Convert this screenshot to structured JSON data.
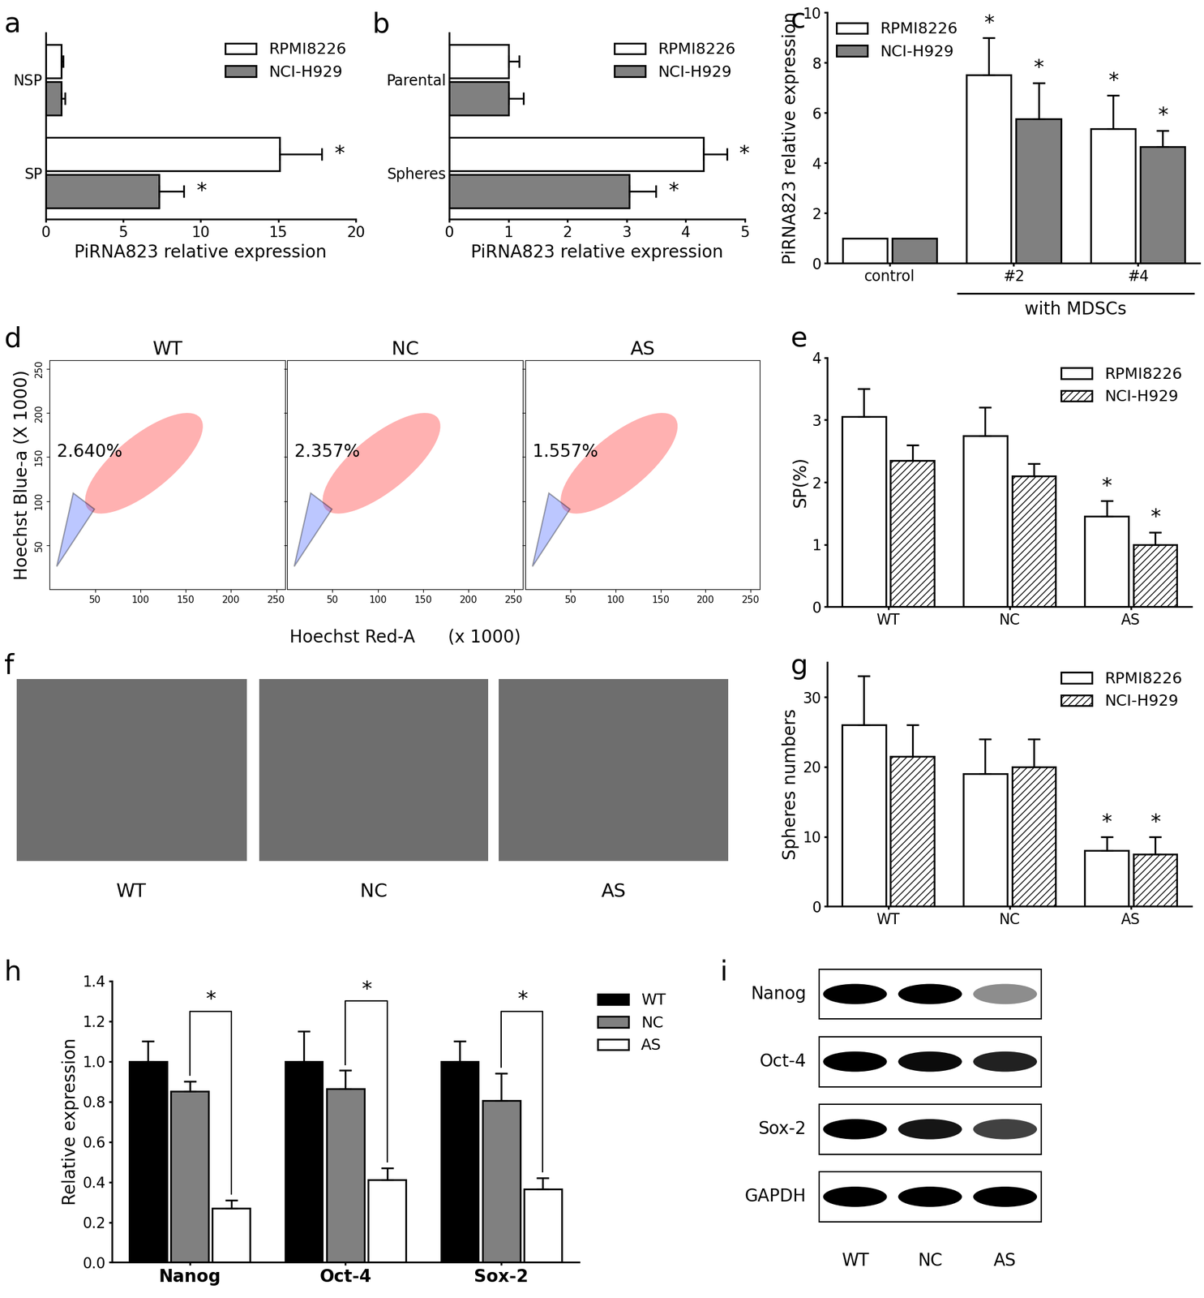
{
  "chart_data": [
    {
      "type": "bar",
      "orientation": "horizontal",
      "annotations": [
        "a"
      ],
      "categories": [
        "NSP",
        "SP"
      ],
      "xlabel": "PiRNA823 relative expression",
      "xlim": [
        0,
        20
      ],
      "xticks": [
        0,
        5,
        10,
        15,
        20
      ],
      "legend": "upper right",
      "series": [
        {
          "name": "RPMI8226",
          "color": "#ffffff",
          "values": [
            1,
            15.1
          ],
          "errors": [
            0.15,
            2.7
          ],
          "significance": [
            null,
            "*"
          ]
        },
        {
          "name": "NCI-H929",
          "color": "#808080",
          "values": [
            1,
            7.3
          ],
          "errors": [
            0.25,
            1.6
          ],
          "significance": [
            null,
            "*"
          ]
        }
      ]
    },
    {
      "type": "bar",
      "orientation": "horizontal",
      "annotations": [
        "b"
      ],
      "categories": [
        "Parental",
        "Spheres"
      ],
      "xlabel": "PiRNA823 relative expression",
      "xlim": [
        0,
        5
      ],
      "xticks": [
        0,
        1,
        2,
        3,
        4,
        5
      ],
      "legend": "upper right",
      "series": [
        {
          "name": "RPMI8226",
          "color": "#ffffff",
          "values": [
            1,
            4.3
          ],
          "errors": [
            0.18,
            0.4
          ],
          "significance": [
            null,
            "*"
          ]
        },
        {
          "name": "NCI-H929",
          "color": "#808080",
          "values": [
            1,
            3.05
          ],
          "errors": [
            0.25,
            0.45
          ],
          "significance": [
            null,
            "*"
          ]
        }
      ]
    },
    {
      "type": "bar",
      "annotations": [
        "c"
      ],
      "categories": [
        "control",
        "#2",
        "#4"
      ],
      "ylabel": "PiRNA823 relative expression",
      "group_label": {
        "text": "with MDSCs",
        "categories": [
          "#2",
          "#4"
        ]
      },
      "ylim": [
        0,
        10
      ],
      "yticks": [
        0,
        2,
        4,
        6,
        8,
        10
      ],
      "legend": "upper left",
      "series": [
        {
          "name": "RPMI8226",
          "color": "#ffffff",
          "values": [
            1,
            7.5,
            5.35
          ],
          "errors": [
            null,
            1.5,
            1.35
          ],
          "significance": [
            null,
            "*",
            "*"
          ]
        },
        {
          "name": "NCI-H929",
          "color": "#808080",
          "values": [
            1,
            5.75,
            4.65
          ],
          "errors": [
            null,
            1.45,
            0.65
          ],
          "significance": [
            null,
            "*",
            "*"
          ]
        }
      ]
    },
    {
      "type": "scatter",
      "annotations": [
        "d"
      ],
      "xlabel": "Hoechst Red-A      (x 1000)",
      "ylabel": "Hoechst Blue-a (X 1000)",
      "xlim": [
        0,
        260
      ],
      "ylim": [
        0,
        260
      ],
      "xticks": [
        50,
        100,
        150,
        200,
        250
      ],
      "yticks": [
        50,
        100,
        150,
        200,
        250
      ],
      "panels": [
        {
          "title": "WT",
          "gate_value": 2.64,
          "gate_label": "2.640%"
        },
        {
          "title": "NC",
          "gate_value": 2.357,
          "gate_label": "2.357%"
        },
        {
          "title": "AS",
          "gate_value": 1.557,
          "gate_label": "1.557%"
        }
      ]
    },
    {
      "type": "bar",
      "annotations": [
        "e"
      ],
      "categories": [
        "WT",
        "NC",
        "AS"
      ],
      "ylabel": "SP(%)",
      "ylim": [
        0,
        4
      ],
      "yticks": [
        0,
        1,
        2,
        3,
        4
      ],
      "legend": "upper right",
      "series": [
        {
          "name": "RPMI8226",
          "color": "#ffffff",
          "values": [
            3.05,
            2.75,
            1.45
          ],
          "errors": [
            0.45,
            0.45,
            0.25
          ],
          "significance": [
            null,
            null,
            "*"
          ]
        },
        {
          "name": "NCI-H929",
          "color": "#ffffff",
          "line_style": "hatched",
          "values": [
            2.35,
            2.1,
            1.0
          ],
          "errors": [
            0.25,
            0.2,
            0.2
          ],
          "significance": [
            null,
            null,
            "*"
          ]
        }
      ]
    },
    {
      "type": "image",
      "annotations": [
        "f"
      ],
      "panels": [
        "WT",
        "NC",
        "AS"
      ]
    },
    {
      "type": "bar",
      "annotations": [
        "g"
      ],
      "categories": [
        "WT",
        "NC",
        "AS"
      ],
      "ylabel": "Spheres numbers",
      "ylim": [
        0,
        35
      ],
      "yticks": [
        0,
        10,
        20,
        30
      ],
      "legend": "upper right",
      "series": [
        {
          "name": "RPMI8226",
          "color": "#ffffff",
          "values": [
            26,
            19,
            8
          ],
          "errors": [
            7,
            5,
            2
          ],
          "significance": [
            null,
            null,
            "*"
          ]
        },
        {
          "name": "NCI-H929",
          "color": "#ffffff",
          "line_style": "hatched",
          "values": [
            21.5,
            20,
            7.5
          ],
          "errors": [
            4.5,
            4,
            2.5
          ],
          "significance": [
            null,
            null,
            "*"
          ]
        }
      ]
    },
    {
      "type": "bar",
      "annotations": [
        "h"
      ],
      "categories": [
        "Nanog",
        "Oct-4",
        "Sox-2"
      ],
      "ylabel": "Relative expression",
      "ylim": [
        0,
        1.4
      ],
      "yticks": [
        0.0,
        0.2,
        0.4,
        0.6,
        0.8,
        1.0,
        1.2,
        1.4
      ],
      "legend": "outside right",
      "comparison": {
        "between": [
          "NC",
          "AS"
        ],
        "labels": [
          "*",
          "*",
          "*"
        ]
      },
      "series": [
        {
          "name": "WT",
          "color": "#000000",
          "values": [
            1.0,
            1.0,
            1.0
          ],
          "errors": [
            0.1,
            0.15,
            0.1
          ]
        },
        {
          "name": "NC",
          "color": "#808080",
          "values": [
            0.85,
            0.865,
            0.805
          ],
          "errors": [
            0.05,
            0.09,
            0.135
          ]
        },
        {
          "name": "AS",
          "color": "#ffffff",
          "values": [
            0.27,
            0.41,
            0.365
          ],
          "errors": [
            0.04,
            0.06,
            0.055
          ]
        }
      ]
    },
    {
      "type": "blot",
      "annotations": [
        "i"
      ],
      "rows": [
        "Nanog",
        "Oct-4",
        "Sox-2",
        "GAPDH"
      ],
      "lanes": [
        "WT",
        "NC",
        "AS"
      ],
      "band_intensity": [
        [
          1.0,
          1.0,
          0.35
        ],
        [
          1.0,
          0.95,
          0.85
        ],
        [
          1.0,
          0.9,
          0.7
        ],
        [
          1.0,
          1.0,
          1.0
        ]
      ]
    }
  ]
}
